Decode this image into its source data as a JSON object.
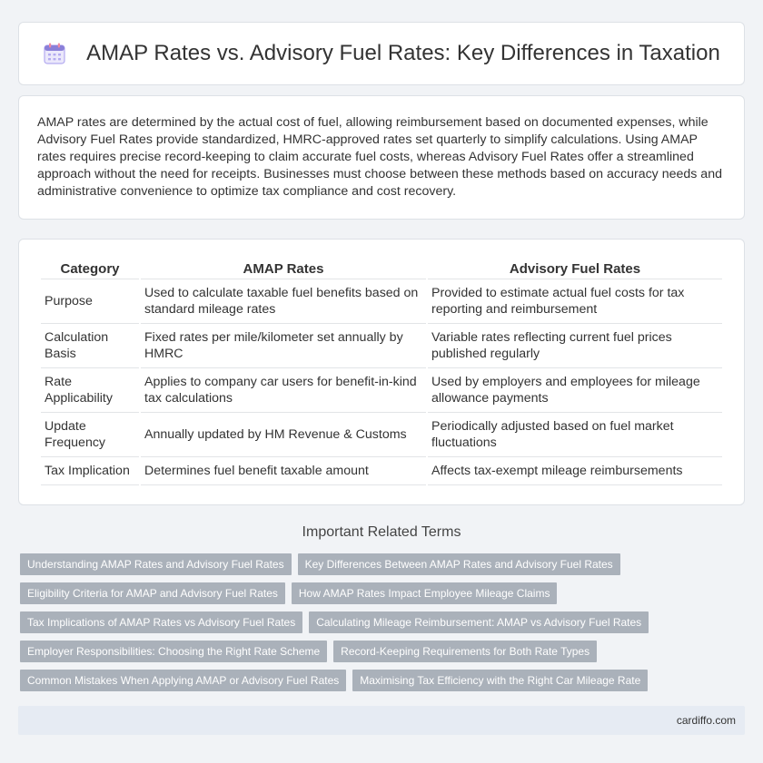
{
  "header": {
    "title": "AMAP Rates vs. Advisory Fuel Rates: Key Differences in Taxation",
    "icon": "calendar-icon",
    "accent": "#8a7fd8"
  },
  "summary": {
    "text": "AMAP rates are determined by the actual cost of fuel, allowing reimbursement based on documented expenses, while Advisory Fuel Rates provide standardized, HMRC-approved rates set quarterly to simplify calculations. Using AMAP rates requires precise record-keeping to claim accurate fuel costs, whereas Advisory Fuel Rates offer a streamlined approach without the need for receipts. Businesses must choose between these methods based on accuracy needs and administrative convenience to optimize tax compliance and cost recovery."
  },
  "table": {
    "headers": [
      "Category",
      "AMAP Rates",
      "Advisory Fuel Rates"
    ],
    "rows": [
      [
        "Purpose",
        "Used to calculate taxable fuel benefits based on standard mileage rates",
        "Provided to estimate actual fuel costs for tax reporting and reimbursement"
      ],
      [
        "Calculation Basis",
        "Fixed rates per mile/kilometer set annually by HMRC",
        "Variable rates reflecting current fuel prices published regularly"
      ],
      [
        "Rate Applicability",
        "Applies to company car users for benefit-in-kind tax calculations",
        "Used by employers and employees for mileage allowance payments"
      ],
      [
        "Update Frequency",
        "Annually updated by HM Revenue & Customs",
        "Periodically adjusted based on fuel market fluctuations"
      ],
      [
        "Tax Implication",
        "Determines fuel benefit taxable amount",
        "Affects tax-exempt mileage reimbursements"
      ]
    ]
  },
  "related": {
    "title": "Important Related Terms",
    "rows": [
      [
        "Understanding AMAP Rates and Advisory Fuel Rates",
        "Key Differences Between AMAP Rates and Advisory Fuel Rates"
      ],
      [
        "Eligibility Criteria for AMAP and Advisory Fuel Rates",
        "How AMAP Rates Impact Employee Mileage Claims"
      ],
      [
        "Tax Implications of AMAP Rates vs Advisory Fuel Rates",
        "Calculating Mileage Reimbursement: AMAP vs Advisory Fuel Rates"
      ],
      [
        "Employer Responsibilities: Choosing the Right Rate Scheme",
        "Record-Keeping Requirements for Both Rate Types"
      ],
      [
        "Common Mistakes When Applying AMAP or Advisory Fuel Rates",
        "Maximising Tax Efficiency with the Right Car Mileage Rate"
      ]
    ]
  },
  "footer": {
    "site": "cardiffo.com"
  }
}
